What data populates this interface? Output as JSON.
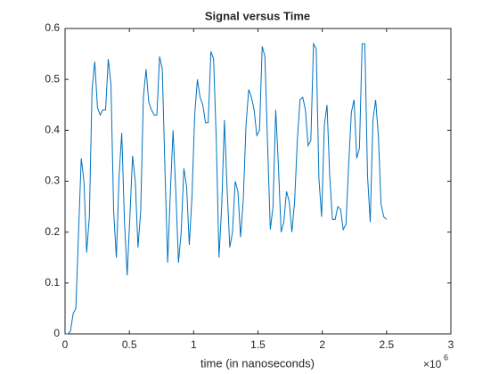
{
  "chart_data": {
    "type": "line",
    "title": "Signal versus Time",
    "xlabel": "time (in nanoseconds)",
    "x_exponent": {
      "base": "×10",
      "power": "6"
    },
    "x": [
      0,
      21000,
      42000,
      63000,
      84000,
      105000,
      126000,
      147000,
      168000,
      189000,
      210000,
      231000,
      252000,
      273000,
      294000,
      315000,
      336000,
      357000,
      378000,
      399000,
      420000,
      441000,
      462000,
      483000,
      504000,
      525000,
      546000,
      567000,
      588000,
      609000,
      630000,
      651000,
      672000,
      693000,
      714000,
      735000,
      756000,
      777000,
      798000,
      819000,
      840000,
      861000,
      882000,
      903000,
      924000,
      945000,
      966000,
      987000,
      1008000,
      1029000,
      1050000,
      1071000,
      1092000,
      1113000,
      1134000,
      1155000,
      1176000,
      1197000,
      1218000,
      1239000,
      1260000,
      1281000,
      1302000,
      1323000,
      1344000,
      1365000,
      1386000,
      1407000,
      1428000,
      1449000,
      1470000,
      1491000,
      1512000,
      1533000,
      1554000,
      1575000,
      1596000,
      1617000,
      1638000,
      1659000,
      1680000,
      1701000,
      1722000,
      1743000,
      1764000,
      1785000,
      1806000,
      1827000,
      1848000,
      1869000,
      1890000,
      1911000,
      1932000,
      1953000,
      1974000,
      1995000,
      2016000,
      2037000,
      2058000,
      2079000,
      2100000,
      2121000,
      2142000,
      2163000,
      2184000,
      2205000,
      2226000,
      2247000,
      2268000,
      2289000,
      2310000,
      2331000,
      2352000,
      2373000,
      2394000,
      2415000,
      2436000,
      2457000,
      2478000,
      2499000
    ],
    "series": [
      {
        "color": "#0072bd",
        "values": [
          0,
          0,
          0.005,
          0.04,
          0.05,
          0.2,
          0.345,
          0.3,
          0.16,
          0.23,
          0.48,
          0.535,
          0.445,
          0.43,
          0.44,
          0.44,
          0.54,
          0.49,
          0.24,
          0.15,
          0.31,
          0.395,
          0.22,
          0.115,
          0.23,
          0.35,
          0.3,
          0.17,
          0.24,
          0.465,
          0.52,
          0.455,
          0.44,
          0.43,
          0.43,
          0.545,
          0.52,
          0.32,
          0.14,
          0.28,
          0.4,
          0.28,
          0.14,
          0.2,
          0.325,
          0.29,
          0.175,
          0.27,
          0.43,
          0.5,
          0.465,
          0.45,
          0.415,
          0.415,
          0.555,
          0.54,
          0.38,
          0.15,
          0.25,
          0.42,
          0.285,
          0.17,
          0.2,
          0.3,
          0.28,
          0.19,
          0.265,
          0.41,
          0.48,
          0.465,
          0.44,
          0.39,
          0.4,
          0.565,
          0.545,
          0.37,
          0.205,
          0.25,
          0.44,
          0.33,
          0.2,
          0.22,
          0.28,
          0.26,
          0.2,
          0.26,
          0.38,
          0.46,
          0.465,
          0.44,
          0.37,
          0.38,
          0.57,
          0.56,
          0.305,
          0.23,
          0.41,
          0.45,
          0.31,
          0.225,
          0.225,
          0.25,
          0.245,
          0.205,
          0.215,
          0.33,
          0.435,
          0.46,
          0.345,
          0.365,
          0.57,
          0.57,
          0.31,
          0.22,
          0.42,
          0.46,
          0.39,
          0.255,
          0.23,
          0.225
        ]
      }
    ],
    "xlim": [
      0,
      3000000
    ],
    "xticks": [
      0,
      {
        "value": 500000,
        "label": "0.5"
      },
      {
        "value": 1000000,
        "label": "1"
      },
      {
        "value": 1500000,
        "label": "1.5"
      },
      {
        "value": 2000000,
        "label": "2"
      },
      {
        "value": 2500000,
        "label": "2.5"
      },
      {
        "value": 3000000,
        "label": "3"
      }
    ],
    "ylim": [
      0,
      0.6
    ],
    "yticks": [
      0,
      0.1,
      0.2,
      0.3,
      0.4,
      0.5,
      0.6
    ],
    "grid": false
  }
}
